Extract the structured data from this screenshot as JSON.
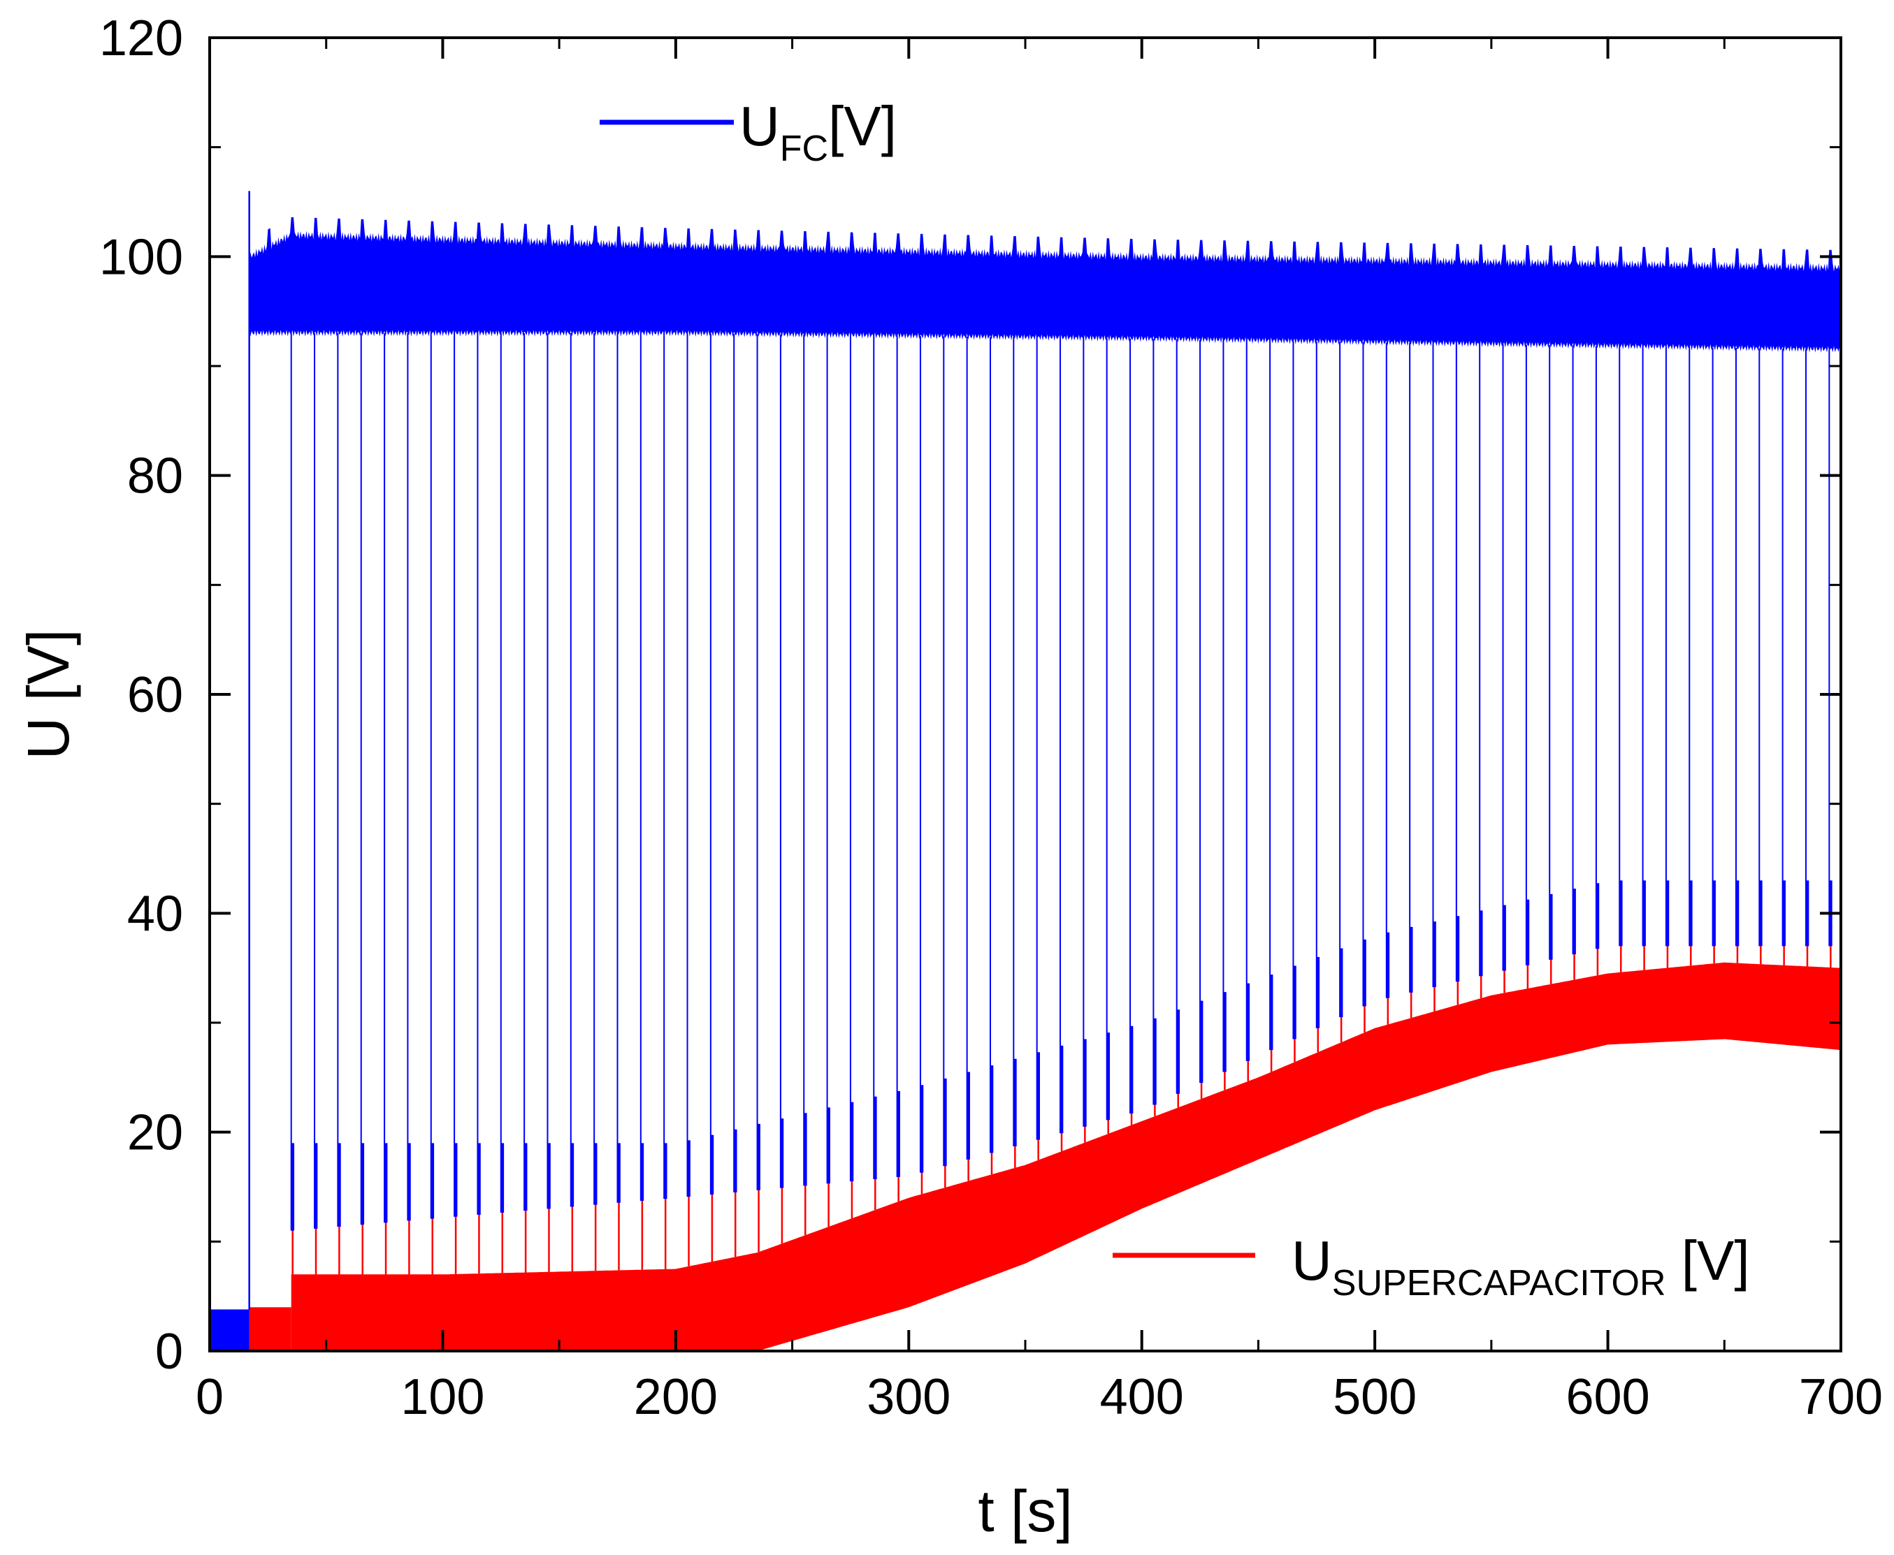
{
  "chart_data": {
    "type": "line",
    "xlabel": "t [s]",
    "ylabel": "U [V]",
    "xlim": [
      0,
      700
    ],
    "ylim": [
      0,
      120
    ],
    "x_ticks": [
      "0",
      "100",
      "200",
      "300",
      "400",
      "500",
      "600",
      "700"
    ],
    "y_ticks": [
      "0",
      "20",
      "40",
      "60",
      "80",
      "100",
      "120"
    ],
    "x_minor_step": 50,
    "y_minor_step": 10,
    "grid": false,
    "legend": [
      {
        "series": "fc",
        "main": "U",
        "sub": "FC",
        "unit": "[V]",
        "position": "top-left"
      },
      {
        "series": "sc",
        "main": "U",
        "sub": "SUPERCAPACITOR",
        "unit": " [V]",
        "position": "bottom-right"
      }
    ],
    "colors": {
      "fc": "#0000ff",
      "sc": "#ff0000",
      "axis": "#000000"
    },
    "series": [
      {
        "id": "fc",
        "name": "U_FC[V]",
        "description": "fuel cell voltage; ~4 V until 17 s, then oscillating in a band with periodic dips every ~10 s",
        "initial": {
          "t_end": 17,
          "low": 0,
          "high": 3.8
        },
        "spike": {
          "t": 17,
          "u": 106
        },
        "band": [
          {
            "t": 17,
            "low": 93,
            "high": 100
          },
          {
            "t": 35,
            "low": 93,
            "high": 102
          },
          {
            "t": 200,
            "low": 93,
            "high": 101
          },
          {
            "t": 400,
            "low": 92.5,
            "high": 100
          },
          {
            "t": 700,
            "low": 91.5,
            "high": 99
          }
        ],
        "dip_period": 10,
        "dip_start": 35,
        "dip_min": [
          {
            "t": 35,
            "u": 11
          },
          {
            "t": 200,
            "u": 14
          },
          {
            "t": 300,
            "u": 16
          },
          {
            "t": 400,
            "u": 22
          },
          {
            "t": 500,
            "u": 32
          },
          {
            "t": 600,
            "u": 37
          },
          {
            "t": 700,
            "u": 37
          }
        ],
        "dip_tip": [
          {
            "t": 35,
            "u": 19
          },
          {
            "t": 200,
            "u": 19
          },
          {
            "t": 300,
            "u": 24
          },
          {
            "t": 400,
            "u": 30
          },
          {
            "t": 500,
            "u": 38
          },
          {
            "t": 600,
            "u": 43
          },
          {
            "t": 700,
            "u": 43
          }
        ]
      },
      {
        "id": "sc",
        "name": "U_SUPERCAPACITOR [V]",
        "description": "supercapacitor voltage; flat ~4 V until 35 s, then a thick oscillating band following an S-shaped rise",
        "initial": {
          "t_start": 17,
          "t_end": 35,
          "low": 0,
          "high": 4
        },
        "band": [
          {
            "t": 35,
            "low": 0,
            "high": 7
          },
          {
            "t": 100,
            "low": 0,
            "high": 7
          },
          {
            "t": 200,
            "low": 0,
            "high": 7.5
          },
          {
            "t": 235,
            "low": 0,
            "high": 9
          },
          {
            "t": 300,
            "low": 4,
            "high": 14
          },
          {
            "t": 350,
            "low": 8,
            "high": 17
          },
          {
            "t": 400,
            "low": 13,
            "high": 21
          },
          {
            "t": 450,
            "low": 17.5,
            "high": 25
          },
          {
            "t": 500,
            "low": 22,
            "high": 29.5
          },
          {
            "t": 550,
            "low": 25.5,
            "high": 32.5
          },
          {
            "t": 600,
            "low": 28,
            "high": 34.5
          },
          {
            "t": 650,
            "low": 28.5,
            "high": 35.5
          },
          {
            "t": 700,
            "low": 27.5,
            "high": 35
          }
        ],
        "spike_peak": [
          {
            "t": 35,
            "u": 15
          },
          {
            "t": 200,
            "u": 15
          },
          {
            "t": 300,
            "u": 18
          },
          {
            "t": 400,
            "u": 23
          },
          {
            "t": 500,
            "u": 34
          },
          {
            "t": 600,
            "u": 37
          },
          {
            "t": 700,
            "u": 38
          }
        ]
      }
    ]
  }
}
